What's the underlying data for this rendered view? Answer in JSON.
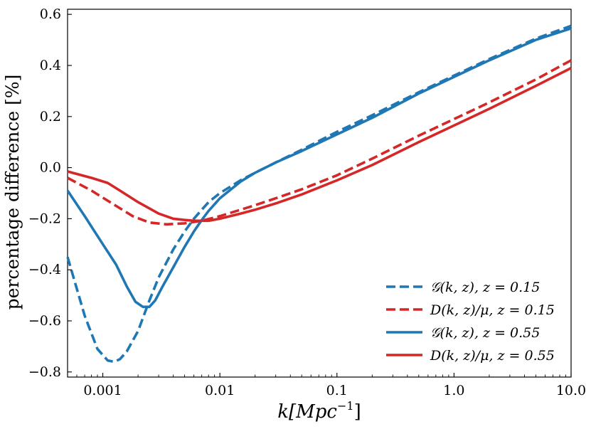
{
  "chart_data": {
    "type": "line",
    "title": "",
    "xlabel": "k[Mpc^-1]",
    "xlabel_main": "k[Mpc",
    "xlabel_sup": "−1",
    "xlabel_close": "]",
    "ylabel": "percentage difference [%]",
    "xscale": "log",
    "xlim": [
      0.0005,
      10.0
    ],
    "ylim": [
      -0.82,
      0.62
    ],
    "xticks": [
      {
        "value": 0.001,
        "label": "0.001"
      },
      {
        "value": 0.01,
        "label": "0.01"
      },
      {
        "value": 0.1,
        "label": "0.1"
      },
      {
        "value": 1.0,
        "label": "1.0"
      },
      {
        "value": 10.0,
        "label": "10.0"
      }
    ],
    "yticks": [
      {
        "value": 0.6,
        "label": "0.6"
      },
      {
        "value": 0.4,
        "label": "0.4"
      },
      {
        "value": 0.2,
        "label": "0.2"
      },
      {
        "value": 0.0,
        "label": "0.0"
      },
      {
        "value": -0.2,
        "label": "−0.2"
      },
      {
        "value": -0.4,
        "label": "−0.4"
      },
      {
        "value": -0.6,
        "label": "−0.6"
      },
      {
        "value": -0.8,
        "label": "−0.8"
      }
    ],
    "legend_position": "bottom-right",
    "series": [
      {
        "name": "G(k, z), z = 0.15",
        "legend_label": "𝒢(k, z),  z = 0.15",
        "color": "#1f77b4",
        "dash": "dashed",
        "x": [
          0.0005,
          0.0007,
          0.0009,
          0.0011,
          0.00125,
          0.0014,
          0.0016,
          0.002,
          0.0025,
          0.003,
          0.004,
          0.005,
          0.006,
          0.008,
          0.01,
          0.015,
          0.02,
          0.03,
          0.05,
          0.1,
          0.2,
          0.5,
          1.0,
          2.0,
          5.0,
          10.0
        ],
        "y": [
          -0.35,
          -0.58,
          -0.71,
          -0.755,
          -0.76,
          -0.75,
          -0.72,
          -0.64,
          -0.52,
          -0.43,
          -0.32,
          -0.25,
          -0.2,
          -0.135,
          -0.1,
          -0.05,
          -0.02,
          0.02,
          0.07,
          0.14,
          0.205,
          0.295,
          0.36,
          0.425,
          0.505,
          0.555
        ]
      },
      {
        "name": "D(k, z)/mu, z = 0.15",
        "legend_label": "D(k, z)/μ,  z = 0.15",
        "color": "#d62728",
        "dash": "dashed",
        "x": [
          0.0005,
          0.0008,
          0.0012,
          0.0018,
          0.0025,
          0.0035,
          0.005,
          0.007,
          0.01,
          0.015,
          0.02,
          0.03,
          0.05,
          0.1,
          0.2,
          0.5,
          1.0,
          2.0,
          5.0,
          10.0
        ],
        "y": [
          -0.04,
          -0.09,
          -0.14,
          -0.19,
          -0.215,
          -0.222,
          -0.218,
          -0.208,
          -0.19,
          -0.165,
          -0.147,
          -0.12,
          -0.085,
          -0.03,
          0.035,
          0.125,
          0.19,
          0.255,
          0.345,
          0.42
        ]
      },
      {
        "name": "G(k, z), z = 0.55",
        "legend_label": "𝒢(k, z),  z = 0.55",
        "color": "#1f77b4",
        "dash": "solid",
        "x": [
          0.0005,
          0.0007,
          0.001,
          0.0013,
          0.0016,
          0.0019,
          0.0022,
          0.0025,
          0.0028,
          0.0032,
          0.004,
          0.005,
          0.006,
          0.007,
          0.008,
          0.01,
          0.015,
          0.02,
          0.03,
          0.05,
          0.1,
          0.2,
          0.5,
          1.0,
          2.0,
          5.0,
          10.0
        ],
        "y": [
          -0.09,
          -0.19,
          -0.3,
          -0.38,
          -0.465,
          -0.525,
          -0.545,
          -0.545,
          -0.52,
          -0.47,
          -0.39,
          -0.31,
          -0.25,
          -0.205,
          -0.17,
          -0.12,
          -0.055,
          -0.02,
          0.02,
          0.065,
          0.13,
          0.195,
          0.29,
          0.355,
          0.42,
          0.5,
          0.545
        ]
      },
      {
        "name": "D(k, z)/mu, z = 0.55",
        "legend_label": "D(k, z)/μ,  z = 0.55",
        "color": "#d62728",
        "dash": "solid",
        "x": [
          0.0005,
          0.0008,
          0.0011,
          0.0014,
          0.002,
          0.003,
          0.004,
          0.005,
          0.006,
          0.008,
          0.01,
          0.015,
          0.02,
          0.03,
          0.05,
          0.1,
          0.2,
          0.5,
          1.0,
          2.0,
          5.0,
          10.0
        ],
        "y": [
          -0.015,
          -0.04,
          -0.06,
          -0.09,
          -0.135,
          -0.18,
          -0.2,
          -0.205,
          -0.208,
          -0.208,
          -0.2,
          -0.18,
          -0.165,
          -0.14,
          -0.105,
          -0.05,
          0.01,
          0.1,
          0.165,
          0.23,
          0.32,
          0.39
        ]
      }
    ]
  }
}
